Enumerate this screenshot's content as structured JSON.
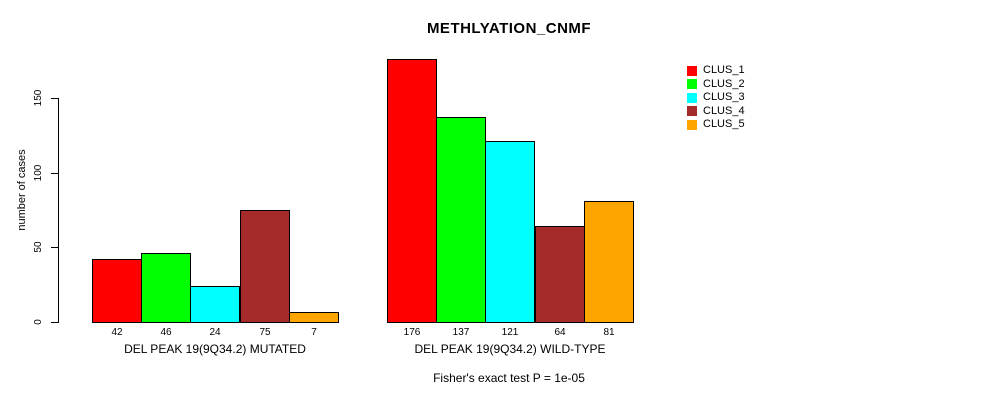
{
  "chart_data": {
    "type": "bar",
    "title": "METHLYATION_CNMF",
    "ylabel": "number of cases",
    "xlabel": "",
    "ylim": [
      0,
      150
    ],
    "yticks": [
      0,
      50,
      100,
      150
    ],
    "grid": false,
    "note": "Fisher's exact test P = 1e-05",
    "bar_border_color": "#000000",
    "legend": {
      "position": "right",
      "entries": [
        {
          "label": "CLUS_1",
          "color": "#FF0000"
        },
        {
          "label": "CLUS_2",
          "color": "#00FF00"
        },
        {
          "label": "CLUS_3",
          "color": "#00FFFF"
        },
        {
          "label": "CLUS_4",
          "color": "#A52A2A"
        },
        {
          "label": "CLUS_5",
          "color": "#FFA500"
        }
      ]
    },
    "groups": [
      {
        "label": "DEL PEAK 19(9Q34.2) MUTATED",
        "values": [
          42,
          46,
          24,
          75,
          7
        ]
      },
      {
        "label": "DEL PEAK 19(9Q34.2) WILD-TYPE",
        "values": [
          176,
          137,
          121,
          64,
          81
        ]
      }
    ]
  }
}
